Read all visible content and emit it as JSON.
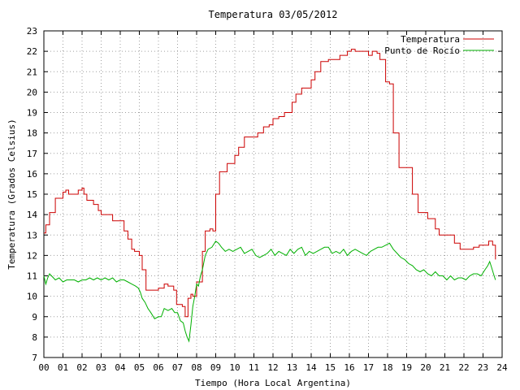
{
  "colors": {
    "background": "#ffffff",
    "grid": "#a0a0a0",
    "axis": "#000000",
    "temperature": "#cc0000",
    "dewpoint": "#00b000"
  },
  "chart_data": {
    "type": "line",
    "title": "Temperatura 03/05/2012",
    "xlabel": "Tiempo (Hora Local Argentina)",
    "ylabel": "Temperatura (Grados Celsius)",
    "xlim": [
      0,
      24
    ],
    "ylim": [
      7,
      23
    ],
    "x_tick_labels": [
      "00",
      "01",
      "02",
      "03",
      "04",
      "05",
      "06",
      "07",
      "08",
      "09",
      "10",
      "11",
      "12",
      "13",
      "14",
      "15",
      "16",
      "17",
      "18",
      "19",
      "20",
      "21",
      "22",
      "23",
      "24"
    ],
    "y_tick_labels": [
      "7",
      "8",
      "9",
      "10",
      "11",
      "12",
      "13",
      "14",
      "15",
      "16",
      "17",
      "18",
      "19",
      "20",
      "21",
      "22",
      "23"
    ],
    "grid": true,
    "legend_position": "top-right",
    "series": [
      {
        "name": "Temperatura",
        "color": "#cc0000",
        "step": true,
        "x": [
          0.0,
          0.1,
          0.3,
          0.6,
          1.0,
          1.15,
          1.3,
          1.6,
          1.8,
          2.0,
          2.1,
          2.25,
          2.6,
          2.85,
          3.0,
          3.6,
          4.0,
          4.2,
          4.4,
          4.6,
          4.75,
          5.0,
          5.15,
          5.35,
          6.0,
          6.3,
          6.5,
          6.8,
          6.95,
          7.25,
          7.4,
          7.55,
          7.7,
          7.8,
          8.0,
          8.3,
          8.45,
          8.7,
          8.85,
          9.0,
          9.2,
          9.6,
          9.8,
          10.0,
          10.2,
          10.5,
          11.0,
          11.2,
          11.5,
          11.8,
          12.0,
          12.3,
          12.6,
          13.0,
          13.2,
          13.5,
          14.0,
          14.2,
          14.5,
          14.9,
          15.1,
          15.5,
          15.9,
          16.1,
          16.3,
          16.6,
          17.0,
          17.2,
          17.45,
          17.6,
          17.9,
          18.1,
          18.3,
          18.6,
          19.0,
          19.3,
          19.6,
          19.8,
          20.1,
          20.5,
          20.7,
          21.0,
          21.5,
          21.8,
          22.0,
          22.5,
          22.8,
          23.0,
          23.3,
          23.5,
          23.65
        ],
        "values": [
          13.1,
          13.5,
          14.1,
          14.8,
          15.1,
          15.2,
          15.0,
          15.0,
          15.2,
          15.3,
          15.0,
          14.7,
          14.5,
          14.2,
          14.0,
          13.7,
          13.7,
          13.2,
          12.8,
          12.3,
          12.2,
          12.0,
          11.3,
          10.3,
          10.4,
          10.6,
          10.5,
          10.3,
          9.6,
          9.5,
          9.0,
          9.9,
          10.1,
          10.0,
          10.7,
          12.2,
          13.2,
          13.3,
          13.2,
          15.0,
          16.1,
          16.5,
          16.5,
          16.9,
          17.3,
          17.8,
          17.8,
          18.0,
          18.3,
          18.4,
          18.7,
          18.8,
          19.0,
          19.5,
          19.9,
          20.2,
          20.6,
          21.0,
          21.5,
          21.6,
          21.6,
          21.8,
          22.0,
          22.1,
          22.0,
          22.0,
          21.8,
          22.0,
          21.9,
          21.6,
          20.5,
          20.4,
          18.0,
          16.3,
          16.3,
          15.0,
          14.1,
          14.1,
          13.8,
          13.3,
          13.0,
          13.0,
          12.6,
          12.3,
          12.3,
          12.4,
          12.5,
          12.5,
          12.7,
          12.5,
          11.8
        ]
      },
      {
        "name": "Punto de Rocío",
        "color": "#00b000",
        "step": false,
        "x": [
          0.0,
          0.1,
          0.2,
          0.3,
          0.4,
          0.5,
          0.6,
          0.8,
          1.0,
          1.2,
          1.4,
          1.6,
          1.8,
          2.0,
          2.2,
          2.4,
          2.6,
          2.8,
          3.0,
          3.2,
          3.4,
          3.6,
          3.8,
          4.0,
          4.2,
          4.4,
          4.6,
          4.8,
          4.95,
          5.05,
          5.15,
          5.3,
          5.45,
          5.6,
          5.8,
          6.0,
          6.15,
          6.3,
          6.5,
          6.7,
          6.85,
          7.0,
          7.15,
          7.3,
          7.4,
          7.5,
          7.6,
          7.7,
          7.8,
          7.9,
          8.0,
          8.1,
          8.2,
          8.3,
          8.45,
          8.6,
          8.8,
          9.0,
          9.15,
          9.3,
          9.5,
          9.7,
          9.9,
          10.1,
          10.3,
          10.5,
          10.7,
          10.9,
          11.1,
          11.3,
          11.5,
          11.7,
          11.9,
          12.1,
          12.3,
          12.5,
          12.7,
          12.9,
          13.1,
          13.3,
          13.5,
          13.7,
          13.9,
          14.1,
          14.3,
          14.5,
          14.7,
          14.9,
          15.1,
          15.3,
          15.5,
          15.7,
          15.9,
          16.1,
          16.3,
          16.5,
          16.7,
          16.9,
          17.1,
          17.3,
          17.5,
          17.7,
          17.9,
          18.1,
          18.3,
          18.5,
          18.7,
          18.9,
          19.1,
          19.3,
          19.5,
          19.7,
          19.9,
          20.1,
          20.3,
          20.5,
          20.7,
          20.9,
          21.1,
          21.3,
          21.5,
          21.7,
          21.9,
          22.1,
          22.3,
          22.5,
          22.7,
          22.9,
          23.1,
          23.25,
          23.35,
          23.45,
          23.55,
          23.65
        ],
        "values": [
          11.0,
          10.6,
          10.9,
          11.1,
          11.0,
          10.9,
          10.8,
          10.9,
          10.7,
          10.8,
          10.8,
          10.8,
          10.7,
          10.8,
          10.8,
          10.9,
          10.8,
          10.9,
          10.8,
          10.9,
          10.8,
          10.9,
          10.7,
          10.8,
          10.8,
          10.7,
          10.6,
          10.5,
          10.4,
          10.2,
          9.9,
          9.7,
          9.4,
          9.2,
          8.9,
          9.0,
          9.0,
          9.4,
          9.3,
          9.4,
          9.2,
          9.2,
          8.8,
          8.7,
          8.3,
          8.0,
          7.8,
          8.6,
          9.5,
          10.0,
          10.6,
          10.5,
          11.0,
          11.3,
          12.0,
          12.3,
          12.4,
          12.7,
          12.6,
          12.4,
          12.2,
          12.3,
          12.2,
          12.3,
          12.4,
          12.1,
          12.2,
          12.3,
          12.0,
          11.9,
          12.0,
          12.1,
          12.3,
          12.0,
          12.2,
          12.1,
          12.0,
          12.3,
          12.1,
          12.3,
          12.4,
          12.0,
          12.2,
          12.1,
          12.2,
          12.3,
          12.4,
          12.4,
          12.1,
          12.2,
          12.1,
          12.3,
          12.0,
          12.2,
          12.3,
          12.2,
          12.1,
          12.0,
          12.2,
          12.3,
          12.4,
          12.4,
          12.5,
          12.6,
          12.3,
          12.1,
          11.9,
          11.8,
          11.6,
          11.5,
          11.3,
          11.2,
          11.3,
          11.1,
          11.0,
          11.2,
          11.0,
          11.0,
          10.8,
          11.0,
          10.8,
          10.9,
          10.9,
          10.8,
          11.0,
          11.1,
          11.1,
          11.0,
          11.3,
          11.5,
          11.7,
          11.4,
          11.1,
          10.8
        ]
      }
    ]
  }
}
